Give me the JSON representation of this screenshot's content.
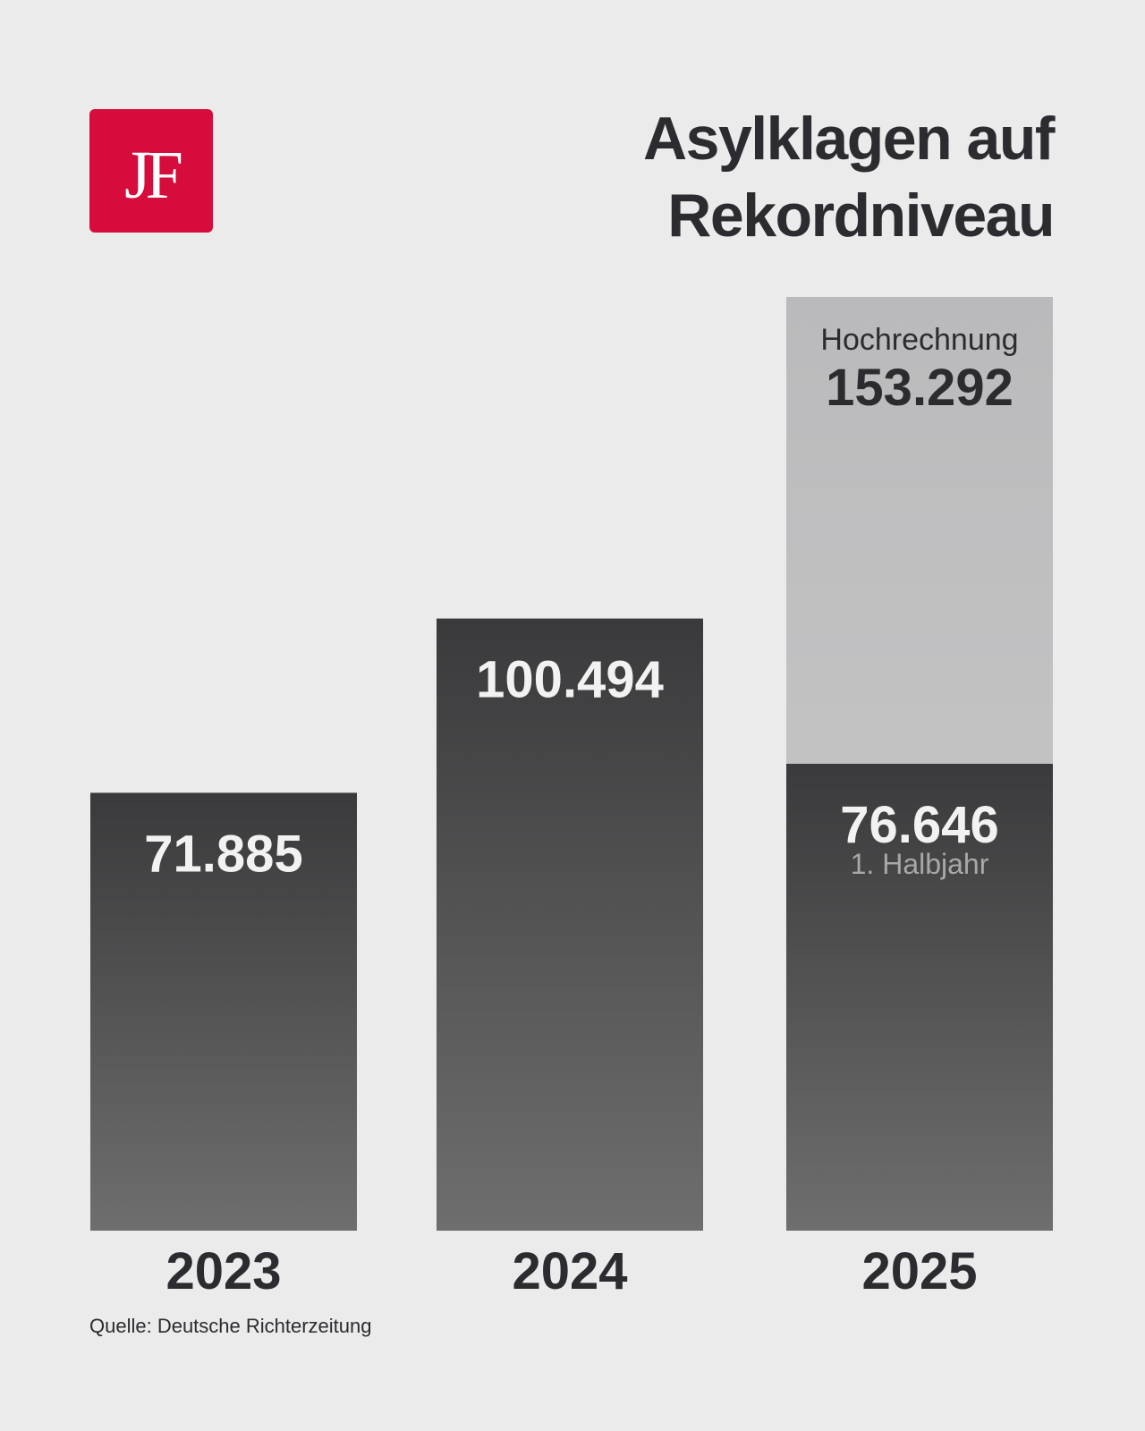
{
  "logo": {
    "text": "JF",
    "color": "#d50c3c"
  },
  "chart_data": {
    "type": "bar",
    "title": "Asylklagen auf Rekordniveau",
    "title_lines": [
      "Asylklagen auf",
      "Rekordniveau"
    ],
    "categories": [
      "2023",
      "2024",
      "2025"
    ],
    "bars": [
      {
        "category": "2023",
        "value": 71885,
        "label": "71.885"
      },
      {
        "category": "2024",
        "value": 100494,
        "label": "100.494"
      },
      {
        "category": "2025",
        "value": 76646,
        "label": "76.646",
        "sublabel": "1. Halbjahr",
        "projection": {
          "value": 153292,
          "label": "153.292",
          "caption": "Hochrechnung"
        }
      }
    ],
    "ylim": [
      0,
      153292
    ],
    "grid": false,
    "colors": {
      "actual_top": "#3a3a3c",
      "actual_bottom": "#6e6e6e",
      "projection_top": "#bababc",
      "projection_bottom": "#cbcbcb",
      "text_dark": "#2b2b30",
      "text_light": "#f2f2f2",
      "sublabel": "#a8a8a8"
    }
  },
  "source": "Quelle: Deutsche Richterzeitung"
}
